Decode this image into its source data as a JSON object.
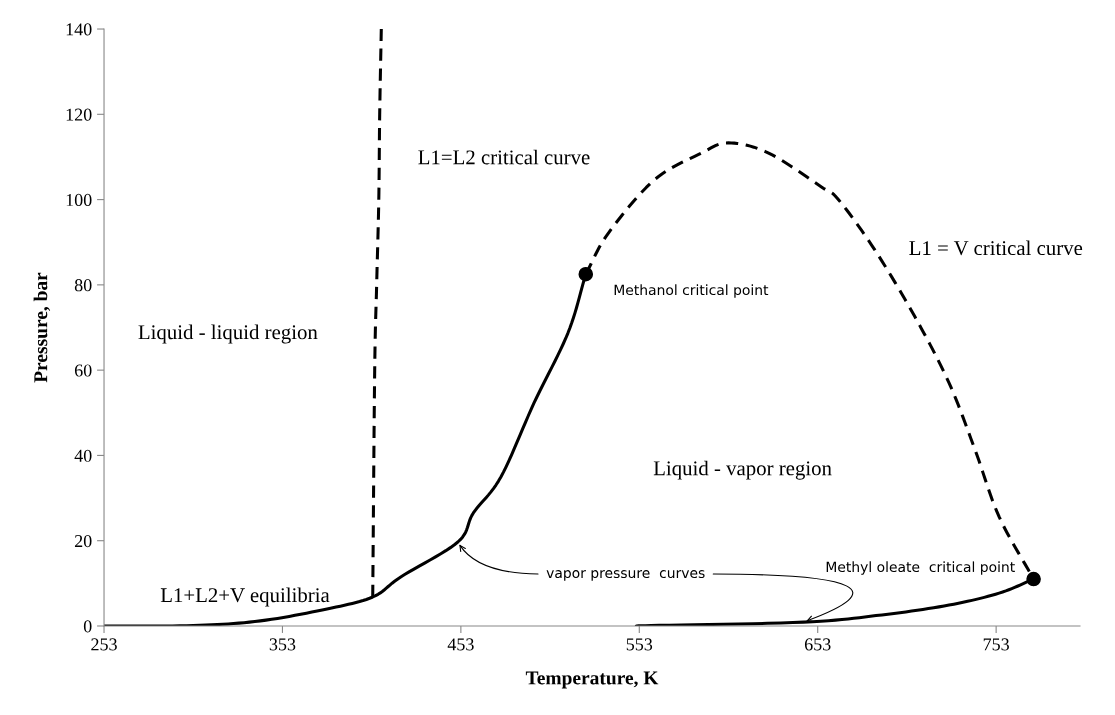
{
  "chart_data": {
    "type": "line",
    "xlabel": "Temperature, K",
    "ylabel": "Pressure, bar",
    "xlim": [
      253,
      800
    ],
    "xticks": [
      253,
      353,
      453,
      553,
      653,
      753
    ],
    "ylim": [
      0,
      140
    ],
    "yticks": [
      0,
      20,
      40,
      60,
      80,
      100,
      120,
      140
    ],
    "grid": false,
    "legend": false,
    "marker": "none",
    "series": [
      {
        "line_style": "solid",
        "color": "#000000",
        "x": [
          253,
          303,
          340.6,
          378,
          403.6,
          419.3,
          451.3,
          460,
          475.5,
          494,
          513,
          523
        ],
        "values": [
          0,
          0.1,
          1.2,
          4.0,
          6.8,
          11.5,
          19.7,
          26.5,
          35,
          52.3,
          68.7,
          82.5
        ]
      },
      {
        "line_style": "dashed",
        "color": "#000000",
        "x": [
          403.6,
          404.7,
          405.8,
          407,
          407.5,
          408.4
        ],
        "values": [
          6.8,
          60,
          80,
          100,
          120,
          140
        ]
      },
      {
        "line_style": "dashed",
        "color": "#000000",
        "x": [
          523,
          535.6,
          561.4,
          587.8,
          603,
          625.5,
          655.3,
          664.8,
          685,
          707.5,
          726.6,
          741.2,
          754.7,
          774
        ],
        "values": [
          82.5,
          92.1,
          104.6,
          110.9,
          113.3,
          110.9,
          102.9,
          99.9,
          88.2,
          72.5,
          57,
          41.3,
          25.6,
          11
        ]
      },
      {
        "line_style": "solid",
        "color": "#000000",
        "x": [
          553,
          559.7,
          645,
          689,
          726.6,
          754.7,
          774
        ],
        "values": [
          0,
          0.1,
          0.9,
          2.6,
          4.9,
          7.7,
          11
        ]
      },
      {
        "type": "scatter",
        "marker": "circle",
        "color": "#000000",
        "x": [
          523,
          774
        ],
        "values": [
          82.5,
          11
        ]
      }
    ],
    "annotations": [
      "Liquid - liquid region",
      "L1=L2 critical curve",
      "Methanol critical point",
      "L1 = V critical curve",
      "Liquid - vapor region",
      "L1+L2+V equilibria",
      "Methyl oleate  critical point",
      {
        "text": "vapor pressure  curves",
        "x": 451.3,
        "y": 19.7
      }
    ]
  }
}
